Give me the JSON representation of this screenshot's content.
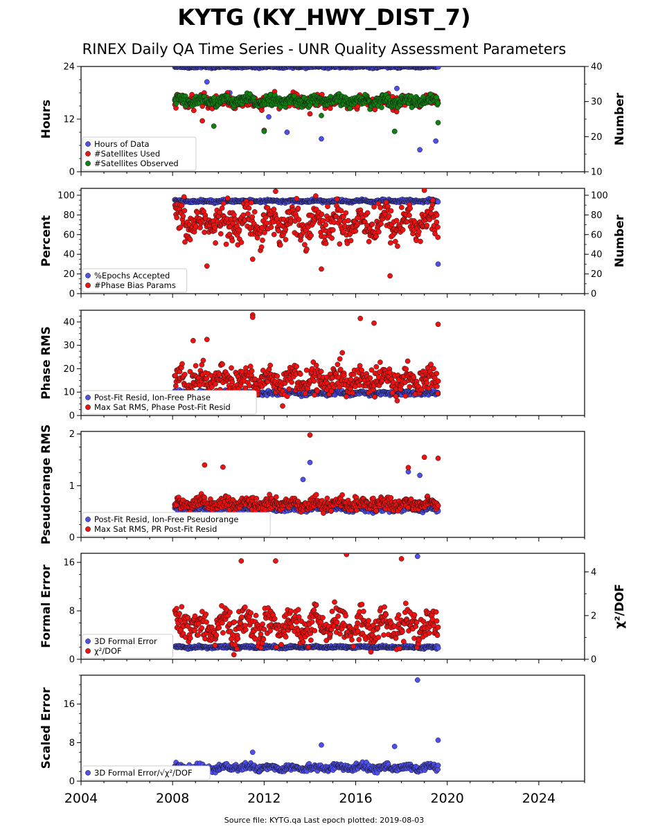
{
  "title": "KYTG (KY_HWY_DIST_7)",
  "subtitle": "RINEX Daily QA Time Series - UNR Quality Assessment Parameters",
  "footer": "Source file: KYTG.qa Last epoch plotted: 2019-08-03",
  "colors": {
    "blue": "#4f4ff0",
    "red": "#ee1111",
    "green": "#108010",
    "navy": "#151545"
  },
  "x_axis": {
    "range": [
      2004,
      2026
    ],
    "ticks": [
      "2004",
      "2008",
      "2012",
      "2016",
      "2020",
      "2024"
    ]
  },
  "chart_data": [
    {
      "type": "scatter",
      "ylabel": "Hours",
      "ylim": [
        0,
        24
      ],
      "yticks": [
        "0",
        "12",
        "24"
      ],
      "y2label": "Number",
      "y2lim": [
        10,
        40
      ],
      "y2ticks": [
        "10",
        "20",
        "30",
        "40"
      ],
      "legend_position": "lower-left",
      "series": [
        {
          "name": "Hours of Data",
          "color": "blue",
          "axis": "left",
          "range": [
            2008.1,
            2019.6
          ],
          "center": 23.9,
          "spread": 0.15,
          "outliers": [
            [
              2009.5,
              20.5
            ],
            [
              2010.5,
              18.0
            ],
            [
              2011.0,
              17.0
            ],
            [
              2012.2,
              12.5
            ],
            [
              2013.0,
              9.0
            ],
            [
              2014.5,
              7.5
            ],
            [
              2017.8,
              19.0
            ],
            [
              2018.8,
              5.0
            ],
            [
              2019.5,
              7.0
            ]
          ]
        },
        {
          "name": "#Satellites Used",
          "color": "red",
          "axis": "right",
          "range": [
            2008.1,
            2019.6
          ],
          "center": 30.0,
          "spread": 1.2,
          "outliers": [
            [
              2009.3,
              24.5
            ],
            [
              2012.0,
              21.8
            ],
            [
              2014.0,
              26.5
            ],
            [
              2017.7,
              21.5
            ]
          ]
        },
        {
          "name": "#Satellites Observed",
          "color": "green",
          "axis": "right",
          "range": [
            2008.1,
            2019.6
          ],
          "center": 30.2,
          "spread": 1.0,
          "outliers": [
            [
              2009.8,
              23.0
            ],
            [
              2012.0,
              21.5
            ],
            [
              2014.5,
              26.0
            ],
            [
              2017.7,
              21.5
            ],
            [
              2019.6,
              24.0
            ]
          ]
        }
      ]
    },
    {
      "type": "scatter",
      "ylabel": "Percent",
      "ylim": [
        0,
        107
      ],
      "yticks": [
        "0",
        "20",
        "40",
        "60",
        "80",
        "100"
      ],
      "y2label": "Number",
      "y2lim": [
        0,
        107
      ],
      "y2ticks": [
        "0",
        "20",
        "40",
        "60",
        "80",
        "100"
      ],
      "legend_position": "lower-left",
      "series": [
        {
          "name": "%Epochs Accepted",
          "color": "blue",
          "axis": "left",
          "range": [
            2008.1,
            2019.6
          ],
          "center": 94.0,
          "spread": 1.0,
          "outliers": [
            [
              2019.6,
              30.0
            ]
          ]
        },
        {
          "name": "#Phase Bias Params",
          "color": "red",
          "axis": "right",
          "range": [
            2008.1,
            2019.6
          ],
          "center": 72.0,
          "spread": 12.0,
          "outliers": [
            [
              2009.5,
              28.0
            ],
            [
              2011.5,
              35.0
            ],
            [
              2014.5,
              25.0
            ],
            [
              2017.5,
              18.0
            ],
            [
              2019.0,
              105.0
            ],
            [
              2012.5,
              104.0
            ]
          ]
        }
      ]
    },
    {
      "type": "scatter",
      "ylabel": "Phase RMS",
      "ylim": [
        0,
        45
      ],
      "yticks": [
        "0",
        "10",
        "20",
        "30",
        "40"
      ],
      "legend_position": "lower-left",
      "series": [
        {
          "name": "Post-Fit Resid, Ion-Free Phase",
          "color": "blue",
          "axis": "left",
          "range": [
            2008.1,
            2019.6
          ],
          "center": 9.5,
          "spread": 0.6,
          "outliers": []
        },
        {
          "name": "Max Sat RMS, Phase Post-Fit Resid",
          "color": "red",
          "axis": "left",
          "range": [
            2008.1,
            2019.6
          ],
          "center": 15.0,
          "spread": 4.0,
          "outliers": [
            [
              2011.5,
              43.0
            ],
            [
              2011.5,
              42.0
            ],
            [
              2016.2,
              41.5
            ],
            [
              2016.8,
              39.5
            ],
            [
              2019.6,
              39.0
            ],
            [
              2008.9,
              32.0
            ],
            [
              2009.5,
              32.5
            ]
          ]
        }
      ]
    },
    {
      "type": "scatter",
      "ylabel": "Pseudorange RMS",
      "ylim": [
        0,
        2.05
      ],
      "yticks": [
        "0",
        "1",
        "2"
      ],
      "legend_position": "lower-left",
      "series": [
        {
          "name": "Post-Fit Resid, Ion-Free Pseudorange",
          "color": "blue",
          "axis": "left",
          "range": [
            2008.1,
            2019.6
          ],
          "center": 0.55,
          "spread": 0.04,
          "outliers": [
            [
              2014.0,
              1.45
            ],
            [
              2013.7,
              1.12
            ],
            [
              2018.3,
              1.27
            ],
            [
              2018.8,
              1.2
            ]
          ]
        },
        {
          "name": "Max Sat RMS, PR Post-Fit Resid",
          "color": "red",
          "axis": "left",
          "range": [
            2008.1,
            2019.6
          ],
          "center": 0.65,
          "spread": 0.08,
          "outliers": [
            [
              2014.0,
              1.98
            ],
            [
              2009.4,
              1.4
            ],
            [
              2010.2,
              1.36
            ],
            [
              2019.0,
              1.55
            ],
            [
              2019.6,
              1.53
            ],
            [
              2018.3,
              1.35
            ]
          ]
        }
      ]
    },
    {
      "type": "scatter",
      "ylabel": "Formal Error",
      "ylim": [
        0,
        17.5
      ],
      "yticks": [
        "0",
        "8",
        "16"
      ],
      "y2label": "χ²/DOF",
      "y2lim": [
        0,
        4.85
      ],
      "y2ticks": [
        "0",
        "2",
        "4"
      ],
      "legend_position": "lower-left",
      "series": [
        {
          "name": "3D Formal Error",
          "color": "blue",
          "axis": "left",
          "range": [
            2008.1,
            2019.6
          ],
          "center": 2.0,
          "spread": 0.15,
          "outliers": [
            [
              2018.7,
              17.0
            ]
          ]
        },
        {
          "name": "χ²/DOF",
          "color": "red",
          "axis": "right",
          "range": [
            2008.1,
            2019.6
          ],
          "center": 1.5,
          "spread": 0.5,
          "outliers": [
            [
              2015.6,
              4.8
            ],
            [
              2012.5,
              4.5
            ],
            [
              2011.0,
              4.5
            ],
            [
              2018.0,
              4.6
            ]
          ]
        }
      ]
    },
    {
      "type": "scatter",
      "ylabel": "Scaled Error",
      "ylim": [
        0,
        22
      ],
      "yticks": [
        "0",
        "8",
        "16"
      ],
      "legend_position": "lower-left",
      "series": [
        {
          "name": "3D Formal Error/√χ²/DOF",
          "color": "blue",
          "axis": "left",
          "range": [
            2008.1,
            2019.6
          ],
          "center": 2.8,
          "spread": 0.5,
          "outliers": [
            [
              2018.7,
              21.0
            ],
            [
              2014.5,
              7.5
            ],
            [
              2017.7,
              7.2
            ],
            [
              2011.5,
              6.0
            ],
            [
              2019.6,
              8.5
            ]
          ]
        }
      ]
    }
  ]
}
